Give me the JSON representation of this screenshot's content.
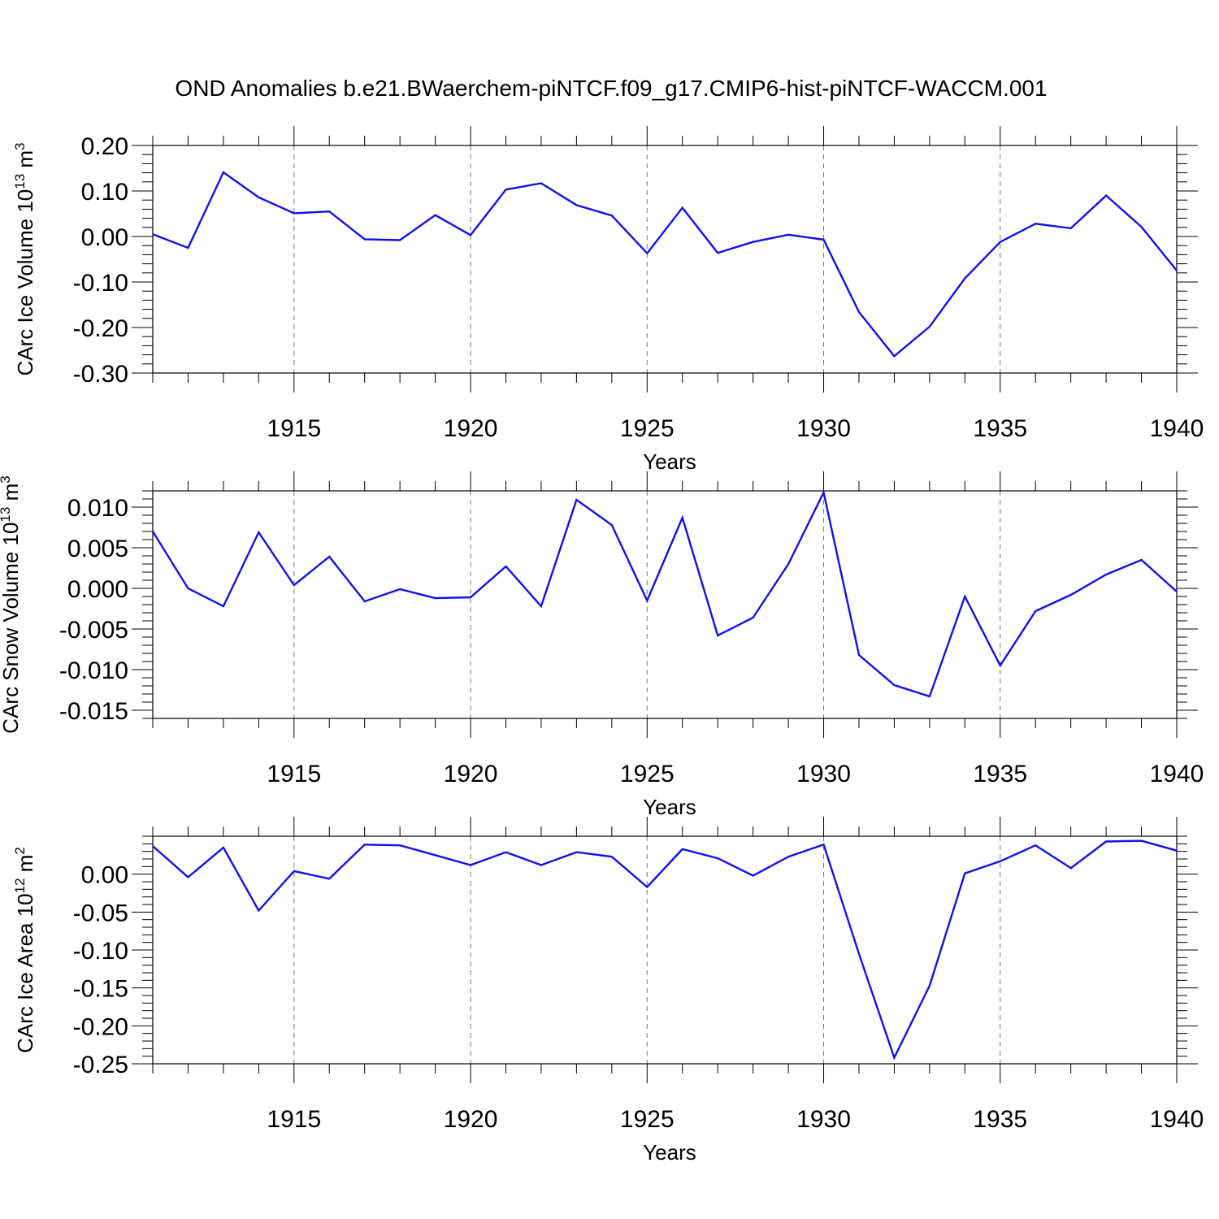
{
  "colors": {
    "series": "#1010f0",
    "grid": "#777777",
    "axes": "#000000"
  },
  "chart_data": [
    {
      "type": "line",
      "title": "OND Anomalies b.e21.BWaerchem-piNTCF.f09_g17.CMIP6-hist-piNTCF-WACCM.001",
      "ylabel": "CArc Ice Volume 10",
      "ylabel_exp": "13",
      "ylabel_unit": " m",
      "ylabel_unit_exp": "3",
      "xlabel": "Years",
      "xlim": [
        1911,
        1940
      ],
      "ylim": [
        -0.3,
        0.2
      ],
      "xticks": [
        1915,
        1920,
        1925,
        1930,
        1935,
        1940
      ],
      "yticks": [
        0.2,
        0.1,
        0.0,
        -0.1,
        -0.2,
        -0.3
      ],
      "ytick_labels": [
        "0.20",
        "0.10",
        "0.00",
        "-0.10",
        "-0.20",
        "-0.30"
      ],
      "grid": "vertical dashed at major x ticks",
      "series": [
        {
          "name": "CArc Ice Volume",
          "x": [
            1911,
            1912,
            1913,
            1914,
            1915,
            1916,
            1917,
            1918,
            1919,
            1920,
            1921,
            1922,
            1923,
            1924,
            1925,
            1926,
            1927,
            1928,
            1929,
            1930,
            1931,
            1932,
            1933,
            1934,
            1935,
            1936,
            1937,
            1938,
            1939,
            1940
          ],
          "values": [
            0.005,
            -0.025,
            0.141,
            0.086,
            0.051,
            0.055,
            -0.006,
            -0.008,
            0.047,
            0.003,
            0.103,
            0.117,
            0.069,
            0.046,
            -0.037,
            0.063,
            -0.036,
            -0.012,
            0.004,
            -0.007,
            -0.166,
            -0.263,
            -0.198,
            -0.092,
            -0.012,
            0.028,
            0.018,
            0.09,
            0.021,
            -0.075
          ]
        }
      ]
    },
    {
      "type": "line",
      "title": "",
      "ylabel": "CArc Snow Volume 10",
      "ylabel_exp": "13",
      "ylabel_unit": " m",
      "ylabel_unit_exp": "3",
      "xlabel": "Years",
      "xlim": [
        1911,
        1940
      ],
      "ylim": [
        -0.016,
        0.012
      ],
      "xticks": [
        1915,
        1920,
        1925,
        1930,
        1935,
        1940
      ],
      "yticks": [
        0.01,
        0.005,
        0.0,
        -0.005,
        -0.01,
        -0.015
      ],
      "ytick_labels": [
        "0.010",
        "0.005",
        "0.000",
        "-0.005",
        "-0.010",
        "-0.015"
      ],
      "grid": "vertical dashed at major x ticks",
      "series": [
        {
          "name": "CArc Snow Volume",
          "x": [
            1911,
            1912,
            1913,
            1914,
            1915,
            1916,
            1917,
            1918,
            1919,
            1920,
            1921,
            1922,
            1923,
            1924,
            1925,
            1926,
            1927,
            1928,
            1929,
            1930,
            1931,
            1932,
            1933,
            1934,
            1935,
            1936,
            1937,
            1938,
            1939,
            1940
          ],
          "values": [
            0.007,
            0.0,
            -0.0022,
            0.0069,
            0.0004,
            0.0039,
            -0.0016,
            -0.0001,
            -0.0012,
            -0.0011,
            0.0027,
            -0.0022,
            0.0109,
            0.0078,
            -0.0015,
            0.0087,
            -0.0058,
            -0.0036,
            0.003,
            0.0118,
            -0.0082,
            -0.0119,
            -0.0133,
            -0.001,
            -0.0095,
            -0.0028,
            -0.0008,
            0.0017,
            0.0035,
            -0.0004
          ]
        }
      ]
    },
    {
      "type": "line",
      "title": "",
      "ylabel": "CArc Ice Area 10",
      "ylabel_exp": "12",
      "ylabel_unit": " m",
      "ylabel_unit_exp": "2",
      "xlabel": "Years",
      "xlim": [
        1911,
        1940
      ],
      "ylim": [
        -0.25,
        0.05
      ],
      "xticks": [
        1915,
        1920,
        1925,
        1930,
        1935,
        1940
      ],
      "yticks": [
        0.0,
        -0.05,
        -0.1,
        -0.15,
        -0.2,
        -0.25
      ],
      "ytick_labels": [
        "0.00",
        "-0.05",
        "-0.10",
        "-0.15",
        "-0.20",
        "-0.25"
      ],
      "grid": "vertical dashed at major x ticks",
      "series": [
        {
          "name": "CArc Ice Area",
          "x": [
            1911,
            1912,
            1913,
            1914,
            1915,
            1916,
            1917,
            1918,
            1919,
            1920,
            1921,
            1922,
            1923,
            1924,
            1925,
            1926,
            1927,
            1928,
            1929,
            1930,
            1931,
            1932,
            1933,
            1934,
            1935,
            1936,
            1937,
            1938,
            1939,
            1940
          ],
          "values": [
            0.037,
            -0.004,
            0.035,
            -0.048,
            0.004,
            -0.006,
            0.039,
            0.038,
            0.025,
            0.012,
            0.029,
            0.012,
            0.029,
            0.023,
            -0.017,
            0.033,
            0.021,
            -0.002,
            0.023,
            0.039,
            -0.105,
            -0.242,
            -0.147,
            0.001,
            0.017,
            0.038,
            0.008,
            0.043,
            0.044,
            0.031
          ]
        }
      ]
    }
  ]
}
